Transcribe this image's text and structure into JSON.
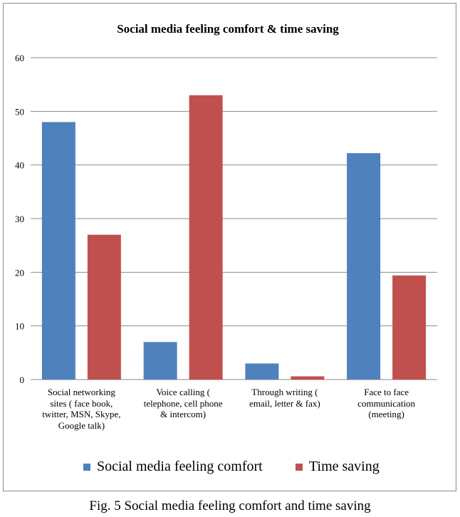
{
  "caption": "Fig. 5 Social media feeling comfort and time saving",
  "chart_data": {
    "type": "bar",
    "title": "Social media feeling comfort & time saving",
    "xlabel": "",
    "ylabel": "",
    "ylim": [
      0,
      60
    ],
    "yticks": [
      "0",
      "10",
      "20",
      "30",
      "40",
      "50",
      "60"
    ],
    "grid": true,
    "legend_position": "bottom",
    "categories": [
      [
        "Social networking",
        "sites ( face book,",
        "twitter, MSN, Skype,",
        "Google talk)"
      ],
      [
        "Voice calling (",
        "telephone, cell phone",
        "& intercom)"
      ],
      [
        "Through writing (",
        "email, letter & fax)"
      ],
      [
        "Face to face",
        "communication",
        "(meeting)"
      ]
    ],
    "series": [
      {
        "name": "Social media feeling comfort",
        "color": "#4f81bd",
        "values": [
          48,
          7,
          3,
          42.2
        ]
      },
      {
        "name": "Time saving",
        "color": "#c0504d",
        "values": [
          27,
          53,
          0.6,
          19.4
        ]
      }
    ]
  }
}
